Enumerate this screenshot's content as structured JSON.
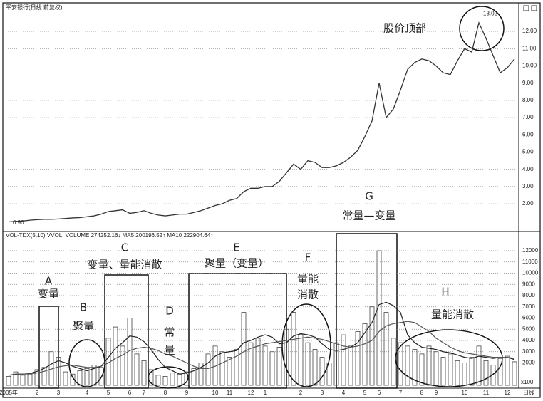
{
  "chart_data": [
    {
      "type": "line",
      "title": "平安银行(日线 前复权)",
      "color": "#333333",
      "values": [
        0.95,
        0.98,
        1.0,
        1.05,
        1.08,
        1.1,
        1.1,
        1.12,
        1.15,
        1.18,
        1.2,
        1.25,
        1.3,
        1.4,
        1.55,
        1.6,
        1.65,
        1.45,
        1.5,
        1.6,
        1.45,
        1.35,
        1.3,
        1.35,
        1.4,
        1.4,
        1.5,
        1.6,
        1.75,
        1.9,
        2.0,
        2.2,
        2.3,
        2.7,
        2.9,
        2.9,
        3.0,
        3.0,
        3.3,
        3.8,
        4.3,
        4.0,
        4.5,
        4.4,
        4.1,
        4.1,
        4.2,
        4.4,
        4.7,
        5.1,
        5.9,
        6.8,
        9.0,
        7.0,
        7.5,
        8.6,
        9.8,
        10.2,
        10.4,
        10.3,
        10.0,
        9.6,
        9.5,
        10.3,
        11.0,
        10.8,
        12.5,
        11.6,
        10.6,
        9.6,
        9.9,
        10.4
      ],
      "ylim": [
        0.6,
        13.49
      ],
      "yticks": [
        {
          "value": 2,
          "label": "2.00"
        },
        {
          "value": 3,
          "label": "3.00"
        },
        {
          "value": 4,
          "label": "4.00"
        },
        {
          "value": 5,
          "label": "5.00"
        },
        {
          "value": 6,
          "label": "6.00"
        },
        {
          "value": 7,
          "label": "7.00"
        },
        {
          "value": 8,
          "label": "8.00"
        },
        {
          "value": 9,
          "label": "9.00"
        },
        {
          "value": 10,
          "label": "10.00"
        },
        {
          "value": 11,
          "label": "11.00"
        },
        {
          "value": 12,
          "label": "12.00"
        }
      ],
      "extremes": [
        {
          "value": 13.02,
          "label": "13.02"
        },
        {
          "value": 0.9,
          "label": "0.90"
        }
      ],
      "annotations": [
        "股价顶部"
      ],
      "grid": true
    },
    {
      "type": "bar",
      "title": "VOL-TDX(5,10) VVOL: VOLUME 274252.16↓ MA5 200196.52↑ MA10 222904.64↑",
      "color": "#444444",
      "categories": [
        "2005年",
        null,
        null,
        null,
        "2",
        null,
        null,
        "3",
        null,
        null,
        null,
        "4",
        null,
        null,
        "5",
        null,
        null,
        "6",
        null,
        "7",
        null,
        null,
        "8",
        null,
        null,
        "9",
        null,
        null,
        null,
        "10",
        null,
        "11",
        null,
        null,
        "12",
        null,
        "1",
        null,
        null,
        null,
        null,
        "2",
        null,
        null,
        "3",
        null,
        null,
        "4",
        null,
        null,
        "5",
        null,
        "6",
        null,
        null,
        "7",
        null,
        null,
        "8",
        null,
        "9",
        null,
        null,
        null,
        "10",
        null,
        null,
        "11",
        null,
        null,
        "12",
        null
      ],
      "values": [
        800,
        1200,
        900,
        1000,
        1400,
        1600,
        3000,
        2500,
        1200,
        1000,
        1300,
        1500,
        1800,
        1600,
        4200,
        5200,
        3500,
        6000,
        2800,
        2200,
        1400,
        900,
        800,
        1100,
        1000,
        1200,
        1500,
        2000,
        2800,
        3500,
        3000,
        2500,
        3200,
        6500,
        3800,
        4200,
        3500,
        3000,
        3400,
        5000,
        6500,
        4500,
        3800,
        3200,
        2500,
        2000,
        3800,
        4500,
        3500,
        4800,
        5500,
        7000,
        12000,
        6500,
        4200,
        3800,
        3500,
        3200,
        2800,
        3500,
        3000,
        2500,
        2800,
        2200,
        2000,
        2500,
        3500,
        2200,
        1800,
        2400,
        2600,
        2100
      ],
      "lines": [
        {
          "color": "#222222",
          "values": [
            900,
            1000,
            1000,
            1050,
            1250,
            1500,
            1900,
            2200,
            2000,
            1700,
            1500,
            1300,
            1500,
            1700,
            2500,
            3300,
            3800,
            4400,
            4300,
            3900,
            3200,
            2300,
            1600,
            1300,
            1000,
            1100,
            1300,
            1600,
            2000,
            2600,
            2900,
            3000,
            3100,
            3800,
            4000,
            4300,
            4500,
            4300,
            3700,
            3800,
            4400,
            4600,
            4500,
            4300,
            3700,
            3200,
            3100,
            3200,
            3400,
            3800,
            4700,
            5600,
            7200,
            7400,
            7100,
            6500,
            4500,
            3800,
            3400,
            3300,
            3200,
            3000,
            2900,
            2700,
            2500,
            2400,
            2600,
            2500,
            2400,
            2500,
            2500,
            2300
          ]
        },
        {
          "color": "#555555",
          "values": [
            900,
            950,
            1000,
            1020,
            1100,
            1250,
            1450,
            1650,
            1750,
            1800,
            1700,
            1600,
            1600,
            1700,
            2000,
            2400,
            2700,
            3100,
            3300,
            3400,
            3300,
            3100,
            2800,
            2600,
            2300,
            2000,
            1700,
            1500,
            1500,
            1700,
            2000,
            2300,
            2600,
            3000,
            3300,
            3500,
            3700,
            3800,
            3900,
            4000,
            4100,
            4200,
            4300,
            4200,
            4100,
            3900,
            3700,
            3500,
            3400,
            3500,
            3700,
            4000,
            4800,
            5300,
            5500,
            5600,
            5700,
            5600,
            5200,
            4800,
            4200,
            3800,
            3400,
            3100,
            2900,
            2800,
            2700,
            2600,
            2500,
            2500,
            2500,
            2400
          ]
        }
      ],
      "ylim": [
        0,
        12760
      ],
      "yticks": [
        2000,
        3000,
        4000,
        5000,
        6000,
        7000,
        8000,
        9000,
        10000,
        11000,
        12000
      ],
      "unit": "x100",
      "period": "日线",
      "annotations": [
        "A",
        "变量",
        "B",
        "聚量",
        "C",
        "变量、量能消散",
        "D",
        "常",
        "量",
        "E",
        "聚量（变量）",
        "F",
        "量能",
        "消散",
        "G",
        "常量—变量",
        "H",
        "量能消散"
      ],
      "grid": true
    }
  ]
}
